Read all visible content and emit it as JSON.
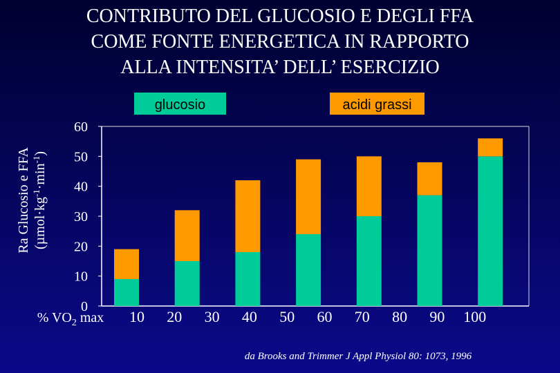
{
  "chart_data": {
    "type": "stacked_bar",
    "title": [
      "CONTRIBUTO DEL GLUCOSIO E DEGLI FFA",
      "COME FONTE ENERGETICA IN RAPPORTO",
      "ALLA INTENSITA’ DELL’ ESERCIZIO"
    ],
    "categories": [
      null,
      null,
      null,
      null,
      null,
      null,
      null
    ],
    "series": [
      {
        "name": "glucosio",
        "color": "#00cc99",
        "values": [
          9,
          15,
          18,
          24,
          30,
          37,
          50
        ]
      },
      {
        "name": "acidi grassi",
        "color": "#ff9900",
        "values": [
          10,
          17,
          24,
          25,
          20,
          11,
          6
        ]
      }
    ],
    "x_labels": [
      "10",
      "20",
      "30",
      "40",
      "50",
      "60",
      "70",
      "80",
      "90",
      "100"
    ],
    "x_label": {
      "text": "% VO",
      "sub": "2",
      "tail": " max"
    },
    "y_label": {
      "line1": "Ra Glucosio e FFA",
      "line2": [
        "(µmol·kg",
        "-1",
        "·min",
        "-1",
        ")"
      ]
    },
    "ylim": [
      0,
      60
    ],
    "yticks": [
      0,
      10,
      20,
      30,
      40,
      50,
      60
    ],
    "source": "da Brooks and Trimmer J Appl Physiol 80: 1073, 1996"
  }
}
